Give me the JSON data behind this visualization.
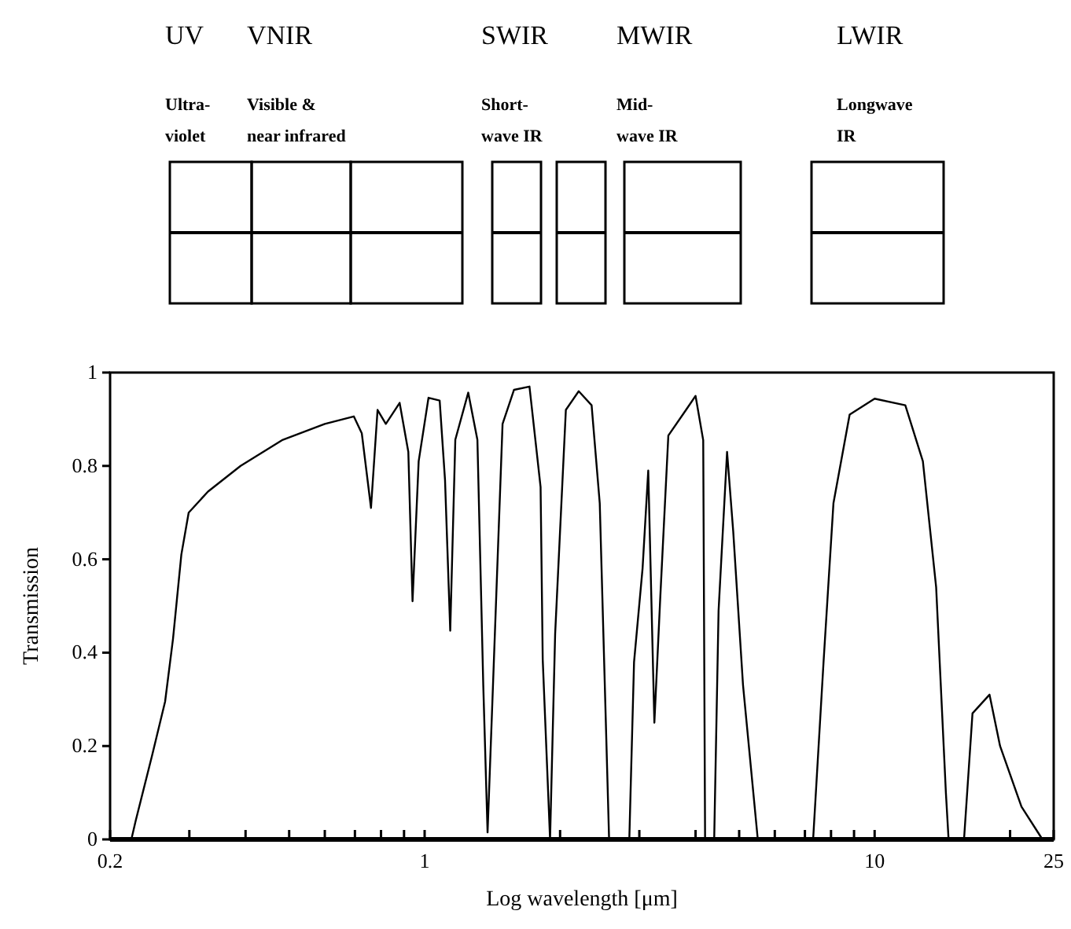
{
  "chart_data": {
    "type": "line",
    "xlabel": "Log wavelength [μm]",
    "ylabel": "Transmission",
    "log": "x",
    "xlim": [
      0.2,
      25
    ],
    "ylim": [
      0,
      1
    ],
    "xticks": [
      0.2,
      {
        "value": 0.3,
        "label": null
      },
      {
        "value": 0.4,
        "label": null
      },
      {
        "value": 0.5,
        "label": null
      },
      {
        "value": 0.6,
        "label": null
      },
      {
        "value": 0.7,
        "label": null
      },
      {
        "value": 0.8,
        "label": null
      },
      {
        "value": 0.9,
        "label": null
      },
      1,
      {
        "value": 2,
        "label": null
      },
      {
        "value": 3,
        "label": null
      },
      {
        "value": 4,
        "label": null
      },
      {
        "value": 5,
        "label": null
      },
      {
        "value": 6,
        "label": null
      },
      {
        "value": 7,
        "label": null
      },
      {
        "value": 8,
        "label": null
      },
      {
        "value": 9,
        "label": null
      },
      10,
      {
        "value": 20,
        "label": null
      },
      25
    ],
    "yticks": [
      0,
      0.2,
      0.4,
      0.6,
      0.8,
      1
    ],
    "grid": false,
    "marker": "none",
    "line_style": "solid",
    "series": [
      {
        "color": "#000000",
        "x": [
          0.2,
          0.223,
          0.228,
          0.248,
          0.265,
          0.276,
          0.288,
          0.299,
          0.33,
          0.39,
          0.484,
          0.6,
          0.696,
          0.725,
          0.76,
          0.786,
          0.82,
          0.88,
          0.92,
          0.94,
          0.97,
          1.02,
          1.08,
          1.11,
          1.14,
          1.17,
          1.25,
          1.31,
          1.35,
          1.38,
          1.42,
          1.49,
          1.58,
          1.71,
          1.81,
          1.83,
          1.9,
          1.95,
          2.06,
          2.2,
          2.35,
          2.45,
          2.57,
          2.85,
          2.92,
          3.05,
          3.14,
          3.24,
          3.34,
          3.48,
          3.81,
          4.0,
          4.16,
          4.2,
          4.4,
          4.5,
          4.7,
          4.85,
          5.1,
          5.5,
          7.3,
          7.7,
          8.1,
          8.8,
          10.0,
          11.7,
          12.8,
          13.7,
          14.4,
          14.6,
          15.8,
          16.5,
          18.0,
          19.0,
          21.2,
          23.6,
          25
        ],
        "values": [
          0,
          0,
          0.04,
          0.18,
          0.295,
          0.43,
          0.61,
          0.7,
          0.745,
          0.8,
          0.856,
          0.89,
          0.906,
          0.87,
          0.71,
          0.92,
          0.89,
          0.935,
          0.83,
          0.51,
          0.81,
          0.946,
          0.94,
          0.77,
          0.447,
          0.856,
          0.957,
          0.856,
          0.33,
          0.015,
          0.34,
          0.89,
          0.963,
          0.97,
          0.755,
          0.385,
          0,
          0.44,
          0.92,
          0.96,
          0.93,
          0.72,
          0,
          0,
          0.38,
          0.58,
          0.79,
          0.25,
          0.52,
          0.865,
          0.92,
          0.95,
          0.855,
          0,
          0,
          0.49,
          0.83,
          0.66,
          0.33,
          0,
          0,
          0.38,
          0.72,
          0.91,
          0.944,
          0.93,
          0.81,
          0.54,
          0.1,
          0,
          0,
          0.27,
          0.31,
          0.2,
          0.07,
          0,
          0
        ]
      }
    ],
    "annotations": [
      "UV",
      "VNIR",
      "SWIR",
      "MWIR",
      "LWIR",
      "Ultra-\nviolet",
      "Visible &\nnear infrared",
      "Short-\nwave IR",
      "Mid-\nwave IR",
      "Longwave\nIR"
    ]
  }
}
